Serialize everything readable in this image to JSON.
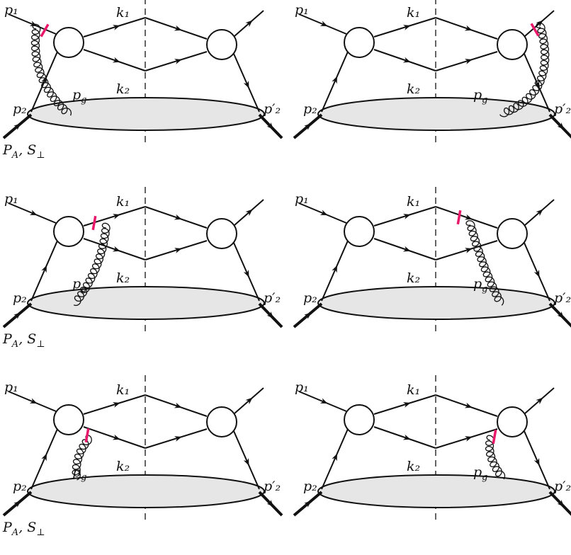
{
  "labels": {
    "p1": "p₁",
    "p2": "p₂",
    "k1": "k₁",
    "k2": "k₂",
    "pg": "p_g",
    "p2prime": "p′₂",
    "target": "P_A, S_⊥"
  },
  "colors": {
    "line": "#111111",
    "blob": "#e6e6e6",
    "cut_marker": "#e8196b"
  },
  "diagrams": [
    {
      "gluon_attachment": "incoming p1 line to target",
      "cut_marker_on": "p1 line",
      "target_label": true
    },
    {
      "gluon_attachment": "outgoing line to target",
      "cut_marker_on": "outgoing line",
      "target_label": false
    },
    {
      "gluon_attachment": "k1 line to target",
      "cut_marker_on": "k1 line, left of cut",
      "target_label": true
    },
    {
      "gluon_attachment": "k1 line to target",
      "cut_marker_on": "k1 line, right of cut",
      "target_label": false
    },
    {
      "gluon_attachment": "k2 line to target",
      "cut_marker_on": "k2 line, left of cut",
      "target_label": true
    },
    {
      "gluon_attachment": "k2 line to target",
      "cut_marker_on": "k2 line, right of cut",
      "target_label": false
    }
  ]
}
